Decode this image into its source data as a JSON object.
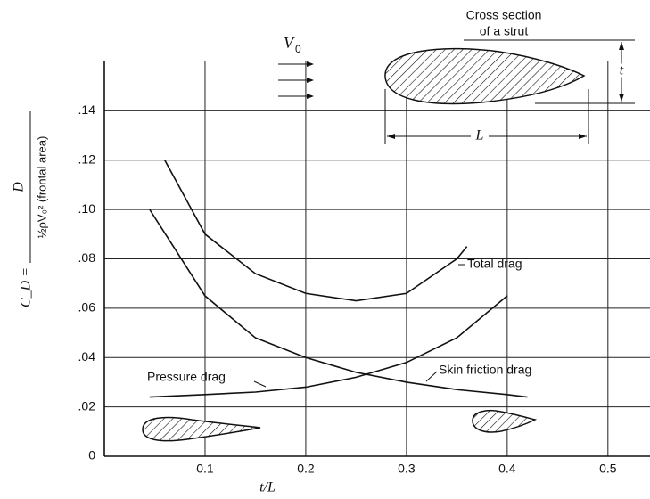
{
  "chart_data": {
    "type": "line",
    "xlim": [
      0,
      0.54
    ],
    "ylim": [
      0,
      0.16
    ],
    "xticks": [
      0.1,
      0.2,
      0.3,
      0.4,
      0.5
    ],
    "yticks": [
      0,
      {
        "value": 0.02,
        "label": ".02"
      },
      {
        "value": 0.04,
        "label": ".04"
      },
      {
        "value": 0.06,
        "label": ".06"
      },
      {
        "value": 0.08,
        "label": ".08"
      },
      {
        "value": 0.1,
        "label": ".10"
      },
      {
        "value": 0.12,
        "label": ".12"
      },
      {
        "value": 0.14,
        "label": ".14"
      }
    ],
    "grid": true,
    "color": "#111111",
    "x_label": "t/L",
    "y_label": {
      "lhs": "C_D =",
      "numerator": "D",
      "denominator": "½ρV₀² (frontal area)"
    },
    "annotations": {
      "strut_title": [
        "Cross section",
        "of a strut"
      ],
      "velocity": "V",
      "velocity_sub": "0",
      "length": "L",
      "thickness": "t"
    },
    "series": [
      {
        "name": "Total drag",
        "x": [
          0.06,
          0.1,
          0.15,
          0.2,
          0.25,
          0.3,
          0.35,
          0.36
        ],
        "values": [
          0.12,
          0.09,
          0.074,
          0.066,
          0.063,
          0.066,
          0.08,
          0.085
        ]
      },
      {
        "name": "Pressure drag",
        "x": [
          0.045,
          0.1,
          0.15,
          0.2,
          0.25,
          0.3,
          0.35,
          0.4
        ],
        "values": [
          0.024,
          0.025,
          0.026,
          0.028,
          0.032,
          0.038,
          0.048,
          0.065
        ]
      },
      {
        "name": "Skin friction drag",
        "x": [
          0.045,
          0.1,
          0.15,
          0.2,
          0.25,
          0.3,
          0.35,
          0.4,
          0.42
        ],
        "values": [
          0.1,
          0.065,
          0.048,
          0.04,
          0.034,
          0.03,
          0.027,
          0.025,
          0.024
        ]
      }
    ]
  }
}
